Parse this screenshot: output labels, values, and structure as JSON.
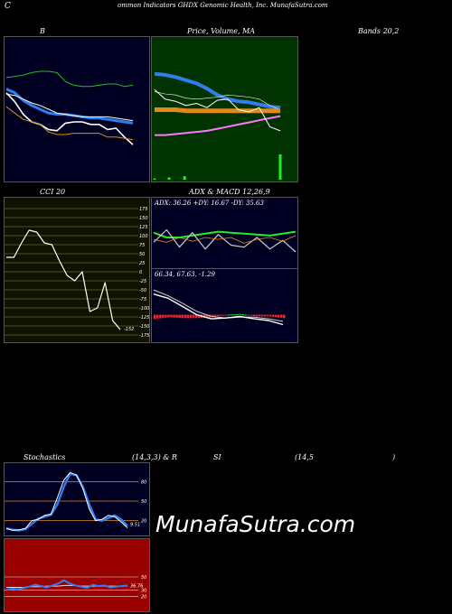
{
  "header": {
    "left_char": "C",
    "text": "ommon  Indicators GHDX  Genomic Health, Inc. MunafaSutra.com"
  },
  "titles": {
    "b": "B",
    "price": "Price,  Volume,  MA",
    "bands": "Bands 20,2",
    "cci": "CCI 20",
    "adx_macd": "ADX  & MACD 12,26,9",
    "stoch": "Stochastics",
    "stoch_params": "(14,3,3) & R",
    "si": "SI",
    "rsi_params": "(14,5",
    "rsi_close": ")"
  },
  "watermark": "MunafaSutra.com",
  "colors": {
    "navy_bg": "#000022",
    "green_bg": "#003300",
    "red_bg": "#9b0000",
    "olive_bg": "#111100",
    "blue": "#2e7ef0",
    "white": "#ffffff",
    "orange": "#e08a1e",
    "green": "#22c022",
    "pink": "#ff77ff",
    "bright_green": "#22ee22",
    "red": "#ff2222"
  },
  "chart_data": [
    {
      "id": "bollinger",
      "type": "line",
      "ylim": [
        0,
        100
      ],
      "series": [
        {
          "values": [
            75,
            76,
            77,
            79,
            80,
            80,
            79,
            72,
            69,
            68,
            68,
            69,
            70,
            70,
            68,
            69
          ]
        },
        {
          "values": [
            66,
            63,
            57,
            53,
            50,
            47,
            46,
            46,
            45,
            44,
            43,
            43,
            42,
            41,
            40,
            39
          ]
        },
        {
          "values": [
            62,
            61,
            58,
            55,
            53,
            50,
            47,
            46,
            45,
            44,
            44,
            44,
            44,
            43,
            42,
            41
          ]
        },
        {
          "values": [
            63,
            56,
            46,
            40,
            38,
            34,
            33,
            39,
            40,
            40,
            38,
            38,
            34,
            35,
            28,
            22
          ]
        },
        {
          "values": [
            52,
            47,
            42,
            40,
            38,
            32,
            30,
            30,
            31,
            31,
            31,
            31,
            28,
            28,
            27,
            26
          ]
        }
      ]
    },
    {
      "id": "price_volume_ma",
      "type": "line",
      "ylim": [
        0,
        100
      ],
      "series": [
        {
          "values": [
            72,
            71,
            69,
            66,
            63,
            58,
            52,
            48,
            46,
            45,
            43,
            41,
            40
          ]
        },
        {
          "values": [
            55,
            53,
            52,
            49,
            48,
            49,
            50,
            52,
            51,
            50,
            48,
            42,
            38
          ]
        },
        {
          "values": [
            38,
            38,
            38,
            37,
            37,
            37,
            37,
            37,
            37,
            37,
            37,
            37,
            37
          ]
        },
        {
          "values": [
            14,
            14,
            15,
            16,
            17,
            18,
            20,
            22,
            24,
            26,
            28,
            30,
            32
          ]
        },
        {
          "values": [
            57,
            48,
            46,
            42,
            44,
            40,
            47,
            48,
            38,
            36,
            40,
            22,
            18
          ]
        }
      ],
      "volume": [
        1,
        0,
        0,
        0,
        0,
        0,
        0,
        0,
        0,
        0,
        0,
        0,
        0,
        0,
        0,
        0,
        2,
        0,
        0,
        0,
        0,
        0,
        0,
        0,
        0,
        0,
        0,
        0,
        0,
        0,
        0,
        0,
        0,
        3,
        0,
        0,
        0,
        0,
        0,
        0,
        0,
        0,
        0,
        0,
        0,
        0,
        0,
        0,
        0,
        0,
        0,
        0,
        0,
        0,
        0,
        0,
        0,
        0,
        0,
        0,
        0,
        0,
        0,
        0,
        0,
        0,
        0,
        0,
        0,
        0,
        0,
        0,
        0,
        0,
        0,
        0,
        0,
        0,
        0,
        0,
        0,
        0,
        0,
        0,
        0,
        0,
        0,
        0,
        0,
        0,
        0,
        0,
        0,
        0,
        0,
        0,
        0,
        0,
        0,
        0,
        0,
        0,
        0,
        0,
        0,
        0,
        0,
        0,
        0,
        0,
        0,
        0,
        0,
        0,
        0,
        0,
        0,
        0,
        0,
        0,
        0,
        0,
        0,
        0,
        0,
        0,
        0,
        0,
        0,
        0,
        0,
        0,
        0,
        0,
        0,
        0,
        0,
        0,
        22
      ]
    },
    {
      "id": "cci",
      "type": "line",
      "ylim": [
        -175,
        175
      ],
      "ticks": [
        175,
        150,
        125,
        100,
        75,
        50,
        25,
        0,
        -25,
        -50,
        -75,
        -100,
        -125,
        -150,
        -175
      ],
      "last_label": "-152",
      "values": [
        40,
        40,
        80,
        115,
        110,
        80,
        75,
        30,
        -10,
        -25,
        0,
        -110,
        -100,
        -30,
        -135,
        -160
      ]
    },
    {
      "id": "adx",
      "type": "line",
      "ylim": [
        0,
        60
      ],
      "label": "ADX: 36.26  +DY: 16.67 -DY: 35.63",
      "series": [
        {
          "values": [
            35,
            30,
            30,
            32,
            34,
            36,
            35,
            34,
            33,
            32,
            34,
            36
          ]
        },
        {
          "values": [
            25,
            38,
            20,
            35,
            18,
            33,
            22,
            20,
            30,
            18,
            27,
            15
          ]
        },
        {
          "values": [
            28,
            25,
            30,
            26,
            30,
            28,
            30,
            24,
            28,
            30,
            26,
            32
          ]
        }
      ]
    },
    {
      "id": "macd",
      "type": "line",
      "ylim": [
        -3,
        4
      ],
      "label": "66.34,  67.63,  -1.29",
      "series": [
        {
          "values": [
            2.5,
            2.0,
            1.0,
            0.0,
            -0.5,
            -0.4,
            -0.2,
            -0.5,
            -0.7,
            -1.2
          ]
        },
        {
          "values": [
            3.0,
            2.3,
            1.4,
            0.4,
            -0.2,
            -0.4,
            -0.3,
            -0.3,
            -0.5,
            -0.8
          ]
        }
      ]
    },
    {
      "id": "stochastics",
      "type": "line",
      "ylim": [
        0,
        100
      ],
      "ticks": [
        80,
        50,
        20
      ],
      "last_label": "9.51",
      "series": [
        {
          "values": [
            8,
            5,
            6,
            8,
            20,
            22,
            28,
            30,
            55,
            82,
            94,
            90,
            70,
            38,
            20,
            22,
            28,
            26,
            18,
            9
          ]
        },
        {
          "values": [
            8,
            6,
            5,
            7,
            15,
            23,
            26,
            29,
            45,
            72,
            92,
            90,
            72,
            45,
            22,
            20,
            24,
            28,
            22,
            12
          ]
        }
      ]
    },
    {
      "id": "rsi",
      "type": "line",
      "ylim": [
        0,
        100
      ],
      "ticks": [
        50,
        30,
        20
      ],
      "last_label": "36.76",
      "series": [
        {
          "values": [
            30,
            32,
            31,
            33,
            35,
            38,
            36,
            34,
            37,
            40,
            45,
            40,
            37,
            35,
            33,
            38,
            36,
            37,
            34,
            35,
            36,
            37
          ]
        },
        {
          "values": [
            34,
            34,
            34,
            34,
            35,
            35,
            35,
            36,
            36,
            36,
            37,
            37,
            37,
            36,
            36,
            36,
            36,
            36,
            36,
            36,
            36,
            36
          ]
        }
      ]
    }
  ]
}
